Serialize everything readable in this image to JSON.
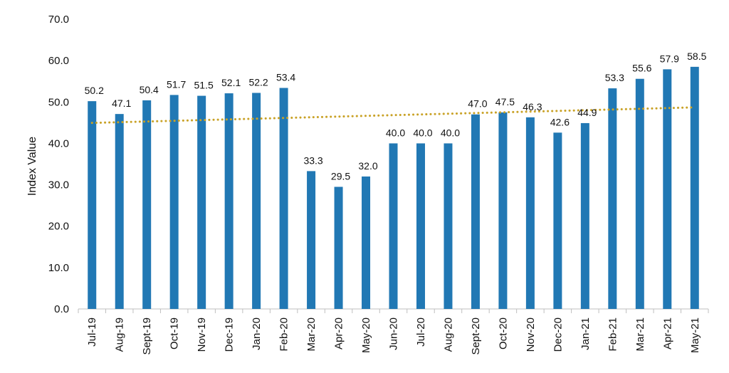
{
  "chart_data": {
    "type": "bar",
    "title": "",
    "xlabel": "",
    "ylabel": "Index Value",
    "ylim": [
      0,
      70
    ],
    "yticks": [
      "0.0",
      "10.0",
      "20.0",
      "30.0",
      "40.0",
      "50.0",
      "60.0",
      "70.0"
    ],
    "categories": [
      "Jul-19",
      "Aug-19",
      "Sept-19",
      "Oct-19",
      "Nov-19",
      "Dec-19",
      "Jan-20",
      "Feb-20",
      "Mar-20",
      "Apr-20",
      "May-20",
      "Jun-20",
      "Jul-20",
      "Aug-20",
      "Sept-20",
      "Oct-20",
      "Nov-20",
      "Dec-20",
      "Jan-21",
      "Feb-21",
      "Mar-21",
      "Apr-21",
      "May-21"
    ],
    "values": [
      50.2,
      47.1,
      50.4,
      51.7,
      51.5,
      52.1,
      52.2,
      53.4,
      33.3,
      29.5,
      32.0,
      40.0,
      40.0,
      40.0,
      47.0,
      47.5,
      46.3,
      42.6,
      44.9,
      53.3,
      55.6,
      57.9,
      58.5
    ],
    "value_labels": [
      "50.2",
      "47.1",
      "50.4",
      "51.7",
      "51.5",
      "52.1",
      "52.2",
      "53.4",
      "33.3",
      "29.5",
      "32.0",
      "40.0",
      "40.0",
      "40.0",
      "47.0",
      "47.5",
      "46.3",
      "42.6",
      "44.9",
      "53.3",
      "55.6",
      "57.9",
      "58.5"
    ],
    "trendline": {
      "type": "linear",
      "style": "dotted"
    },
    "grid": false,
    "legend": "none",
    "colors": {
      "bar": "#2178b4",
      "trend": "#c9a227",
      "axis": "#bfbfbf"
    }
  }
}
